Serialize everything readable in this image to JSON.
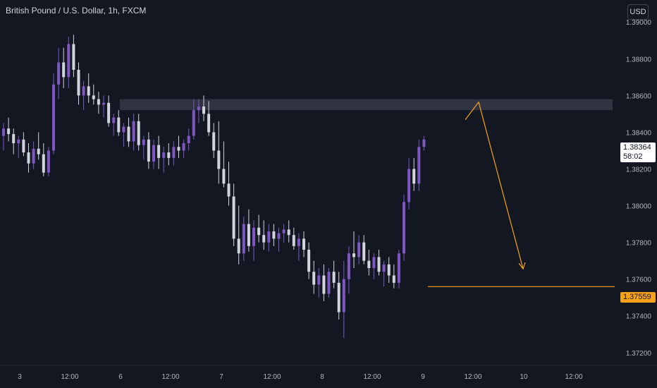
{
  "header": {
    "title": "British Pound / U.S. Dollar, 1h, FXCM",
    "currency_button": "USD"
  },
  "price_tags": {
    "last_price": "1.38364",
    "countdown": "58:02",
    "level": "1.37559"
  },
  "colors": {
    "background": "#131722",
    "bull": "#7e57c2",
    "bear": "#d1d4dc",
    "zone": "#3a3e4d",
    "level": "#f7a21b",
    "axis_text": "#b2b5be"
  },
  "chart_data": {
    "type": "candlestick",
    "y_ticks": [
      "1.39000",
      "1.38800",
      "1.38600",
      "1.38400",
      "1.38200",
      "1.38000",
      "1.37800",
      "1.37600",
      "1.37400",
      "1.37200"
    ],
    "x_ticks": [
      "3",
      "12:00",
      "6",
      "12:00",
      "7",
      "12:00",
      "8",
      "12:00",
      "9",
      "12:00",
      "10",
      "12:00"
    ],
    "ylim": [
      1.3713,
      1.3912
    ],
    "candles": [
      [
        1.3838,
        1.3845,
        1.383,
        1.3842
      ],
      [
        1.3842,
        1.3848,
        1.3835,
        1.3839
      ],
      [
        1.3839,
        1.3842,
        1.3828,
        1.3834
      ],
      [
        1.3834,
        1.3838,
        1.3826,
        1.3836
      ],
      [
        1.3836,
        1.384,
        1.3827,
        1.3829
      ],
      [
        1.3829,
        1.3834,
        1.3818,
        1.3823
      ],
      [
        1.3823,
        1.3835,
        1.382,
        1.3831
      ],
      [
        1.3831,
        1.384,
        1.3825,
        1.3828
      ],
      [
        1.3828,
        1.3834,
        1.3816,
        1.3818
      ],
      [
        1.3818,
        1.3832,
        1.3816,
        1.383
      ],
      [
        1.383,
        1.3872,
        1.3828,
        1.3866
      ],
      [
        1.3866,
        1.3886,
        1.3858,
        1.3878
      ],
      [
        1.3878,
        1.3886,
        1.3864,
        1.387
      ],
      [
        1.387,
        1.3892,
        1.3864,
        1.3888
      ],
      [
        1.3888,
        1.3893,
        1.387,
        1.3874
      ],
      [
        1.3874,
        1.3878,
        1.3855,
        1.386
      ],
      [
        1.386,
        1.3868,
        1.3852,
        1.3865
      ],
      [
        1.3865,
        1.3872,
        1.3856,
        1.386
      ],
      [
        1.386,
        1.3866,
        1.3855,
        1.3858
      ],
      [
        1.3858,
        1.3862,
        1.385,
        1.3855
      ],
      [
        1.3855,
        1.386,
        1.3848,
        1.3856
      ],
      [
        1.3856,
        1.386,
        1.3843,
        1.3845
      ],
      [
        1.3845,
        1.385,
        1.3838,
        1.3848
      ],
      [
        1.3848,
        1.3852,
        1.3838,
        1.384
      ],
      [
        1.384,
        1.3845,
        1.3832,
        1.3843
      ],
      [
        1.3843,
        1.3848,
        1.3832,
        1.3835
      ],
      [
        1.3835,
        1.385,
        1.383,
        1.3846
      ],
      [
        1.3846,
        1.385,
        1.383,
        1.3833
      ],
      [
        1.3833,
        1.3838,
        1.3825,
        1.3836
      ],
      [
        1.3836,
        1.384,
        1.382,
        1.3824
      ],
      [
        1.3824,
        1.3836,
        1.382,
        1.3833
      ],
      [
        1.3833,
        1.3838,
        1.382,
        1.3826
      ],
      [
        1.3826,
        1.3832,
        1.3818,
        1.3829
      ],
      [
        1.3829,
        1.3834,
        1.3822,
        1.3826
      ],
      [
        1.3826,
        1.3835,
        1.3822,
        1.3832
      ],
      [
        1.3832,
        1.3838,
        1.3826,
        1.383
      ],
      [
        1.383,
        1.3836,
        1.3826,
        1.3834
      ],
      [
        1.3834,
        1.3842,
        1.383,
        1.3838
      ],
      [
        1.3838,
        1.3858,
        1.3836,
        1.3852
      ],
      [
        1.3852,
        1.3858,
        1.3845,
        1.3854
      ],
      [
        1.3854,
        1.386,
        1.3846,
        1.385
      ],
      [
        1.385,
        1.3857,
        1.3838,
        1.384
      ],
      [
        1.384,
        1.3845,
        1.3826,
        1.383
      ],
      [
        1.383,
        1.3846,
        1.3812,
        1.382
      ],
      [
        1.382,
        1.3835,
        1.381,
        1.3812
      ],
      [
        1.3812,
        1.3824,
        1.38,
        1.3805
      ],
      [
        1.3805,
        1.3812,
        1.3778,
        1.3782
      ],
      [
        1.3782,
        1.38,
        1.3768,
        1.3774
      ],
      [
        1.3774,
        1.3794,
        1.377,
        1.379
      ],
      [
        1.379,
        1.3798,
        1.3775,
        1.3778
      ],
      [
        1.3778,
        1.3792,
        1.377,
        1.3788
      ],
      [
        1.3788,
        1.3795,
        1.378,
        1.3784
      ],
      [
        1.3784,
        1.3792,
        1.3776,
        1.378
      ],
      [
        1.378,
        1.379,
        1.3775,
        1.3786
      ],
      [
        1.3786,
        1.379,
        1.3778,
        1.3782
      ],
      [
        1.3782,
        1.3788,
        1.3775,
        1.3785
      ],
      [
        1.3785,
        1.379,
        1.378,
        1.3787
      ],
      [
        1.3787,
        1.3792,
        1.378,
        1.3784
      ],
      [
        1.3784,
        1.3788,
        1.3776,
        1.3778
      ],
      [
        1.3778,
        1.3785,
        1.377,
        1.3782
      ],
      [
        1.3782,
        1.3786,
        1.3772,
        1.3776
      ],
      [
        1.3776,
        1.378,
        1.376,
        1.3764
      ],
      [
        1.3764,
        1.377,
        1.3752,
        1.3757
      ],
      [
        1.3757,
        1.3766,
        1.375,
        1.3762
      ],
      [
        1.3762,
        1.3768,
        1.3748,
        1.3752
      ],
      [
        1.3752,
        1.3766,
        1.375,
        1.3764
      ],
      [
        1.3764,
        1.377,
        1.3755,
        1.3758
      ],
      [
        1.3758,
        1.3764,
        1.3738,
        1.3742
      ],
      [
        1.3742,
        1.377,
        1.3728,
        1.376
      ],
      [
        1.376,
        1.3778,
        1.3752,
        1.3774
      ],
      [
        1.3774,
        1.3786,
        1.3766,
        1.3772
      ],
      [
        1.3772,
        1.3784,
        1.3768,
        1.378
      ],
      [
        1.378,
        1.3784,
        1.3768,
        1.377
      ],
      [
        1.377,
        1.3776,
        1.3762,
        1.3766
      ],
      [
        1.3766,
        1.3774,
        1.376,
        1.3772
      ],
      [
        1.3772,
        1.3776,
        1.3762,
        1.3764
      ],
      [
        1.3764,
        1.377,
        1.3756,
        1.3768
      ],
      [
        1.3768,
        1.3772,
        1.3758,
        1.3762
      ],
      [
        1.3762,
        1.3768,
        1.3755,
        1.3758
      ],
      [
        1.3758,
        1.3776,
        1.3755,
        1.3774
      ],
      [
        1.3774,
        1.3806,
        1.377,
        1.3802
      ],
      [
        1.3802,
        1.3826,
        1.3798,
        1.382
      ],
      [
        1.382,
        1.3826,
        1.3808,
        1.3812
      ],
      [
        1.3812,
        1.3836,
        1.3808,
        1.3832
      ],
      [
        1.3832,
        1.3838,
        1.383,
        1.3836
      ]
    ],
    "zone": {
      "top": 1.3858,
      "bottom": 1.3852
    },
    "level": 1.37559,
    "projection": [
      [
        1.38468,
        1.38564
      ],
      [
        1.38564,
        1.37656
      ]
    ],
    "last_price": 1.38364
  }
}
